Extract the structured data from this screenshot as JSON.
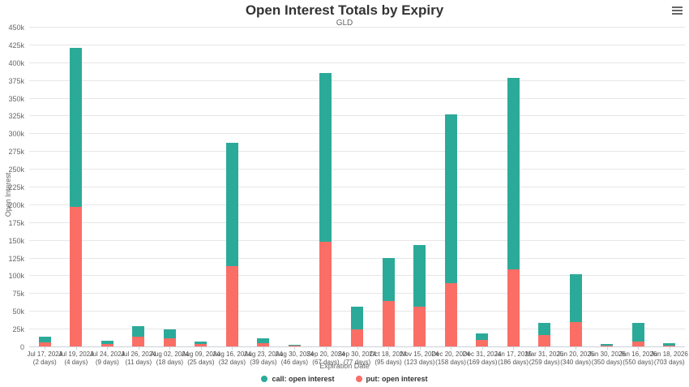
{
  "menu": {
    "icon": "hamburger-menu-icon"
  },
  "chart_data": {
    "type": "bar",
    "stacked": true,
    "title": "Open Interest Totals by Expiry",
    "subtitle": "GLD",
    "xlabel": "Expiration Date",
    "ylabel": "Open Interest",
    "ylim": [
      0,
      450000
    ],
    "ytick_interval": 25000,
    "ytick_labels": [
      "0",
      "25k",
      "50k",
      "75k",
      "100k",
      "125k",
      "150k",
      "175k",
      "200k",
      "225k",
      "250k",
      "275k",
      "300k",
      "325k",
      "350k",
      "375k",
      "400k",
      "425k",
      "450k"
    ],
    "grid": true,
    "legend_position": "bottom",
    "categories": [
      {
        "date": "Jul 17, 2024",
        "days": "(2 days)"
      },
      {
        "date": "Jul 19, 2024",
        "days": "(4 days)"
      },
      {
        "date": "Jul 24, 2024",
        "days": "(9 days)"
      },
      {
        "date": "Jul 26, 2024",
        "days": "(11 days)"
      },
      {
        "date": "Aug 02, 2024",
        "days": "(18 days)"
      },
      {
        "date": "Aug 09, 2024",
        "days": "(25 days)"
      },
      {
        "date": "Aug 16, 2024",
        "days": "(32 days)"
      },
      {
        "date": "Aug 23, 2024",
        "days": "(39 days)"
      },
      {
        "date": "Aug 30, 2024",
        "days": "(46 days)"
      },
      {
        "date": "Sep 20, 2024",
        "days": "(67 days)"
      },
      {
        "date": "Sep 30, 2024",
        "days": "(77 days)"
      },
      {
        "date": "Oct 18, 2024",
        "days": "(95 days)"
      },
      {
        "date": "Nov 15, 2024",
        "days": "(123 days)"
      },
      {
        "date": "Dec 20, 2024",
        "days": "(158 days)"
      },
      {
        "date": "Dec 31, 2024",
        "days": "(169 days)"
      },
      {
        "date": "Jan 17, 2025",
        "days": "(186 days)"
      },
      {
        "date": "Mar 31, 2025",
        "days": "(259 days)"
      },
      {
        "date": "Jun 20, 2025",
        "days": "(340 days)"
      },
      {
        "date": "Jun 30, 2025",
        "days": "(350 days)"
      },
      {
        "date": "Jan 16, 2026",
        "days": "(550 days)"
      },
      {
        "date": "Jun 18, 2026",
        "days": "(703 days)"
      }
    ],
    "series": [
      {
        "name": "put: open interest",
        "color": "#FA6E66",
        "values": [
          6000,
          196000,
          4000,
          14000,
          12000,
          3500,
          113000,
          5000,
          2000,
          147000,
          24000,
          64000,
          56000,
          89000,
          9000,
          108000,
          16000,
          34000,
          1000,
          7000,
          1000
        ]
      },
      {
        "name": "call: open interest",
        "color": "#2CAA99",
        "values": [
          8000,
          224000,
          4000,
          15000,
          12000,
          3000,
          174000,
          6000,
          500,
          238000,
          32000,
          60000,
          87000,
          238000,
          9000,
          270000,
          17000,
          68000,
          2000,
          26000,
          3500
        ]
      }
    ],
    "legend": [
      {
        "label": "call: open interest",
        "color": "#2CAA99"
      },
      {
        "label": "put: open interest",
        "color": "#FA6E66"
      }
    ]
  }
}
